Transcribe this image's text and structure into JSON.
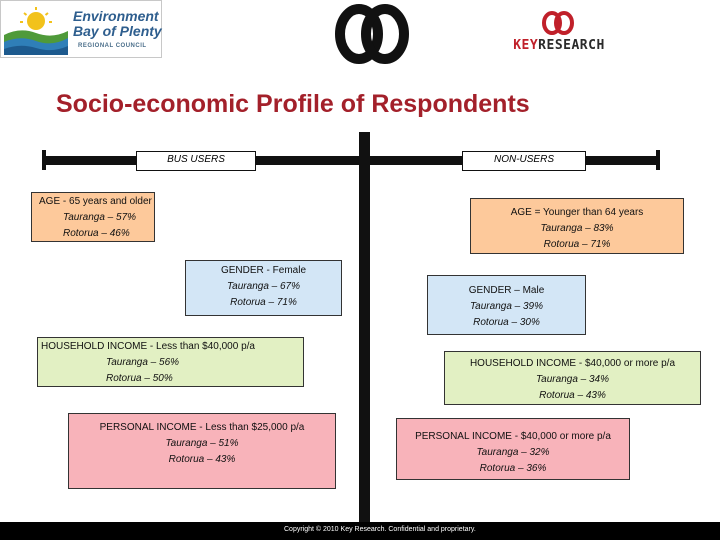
{
  "header": {
    "org_line1": "Environment",
    "org_line2": "Bay of Plenty",
    "org_sub": "REGIONAL COUNCIL",
    "kr_key": "KEY",
    "kr_research": "RESEARCH"
  },
  "title": "Socio-economic Profile of Respondents",
  "columns": {
    "left": "BUS USERS",
    "right": "NON-USERS"
  },
  "bus_users": {
    "age": {
      "heading": "AGE - 65 years and older",
      "line1": "Tauranga – 57%",
      "line2": "Rotorua – 46%"
    },
    "gender": {
      "heading": "GENDER - Female",
      "line1": "Tauranga – 67%",
      "line2": "Rotorua – 71%"
    },
    "household": {
      "heading": "HOUSEHOLD INCOME - Less than $40,000 p/a",
      "line1": "Tauranga – 56%",
      "line2": "Rotorua – 50%"
    },
    "personal": {
      "heading": "PERSONAL INCOME - Less than $25,000 p/a",
      "line1": "Tauranga – 51%",
      "line2": "Rotorua – 43%"
    }
  },
  "non_users": {
    "age": {
      "heading": "AGE = Younger than 64 years",
      "line1": "Tauranga – 83%",
      "line2": "Rotorua – 71%"
    },
    "gender": {
      "heading": "GENDER – Male",
      "line1": "Tauranga – 39%",
      "line2": "Rotorua – 30%"
    },
    "household": {
      "heading": "HOUSEHOLD INCOME - $40,000 or more p/a",
      "line1": "Tauranga – 34%",
      "line2": "Rotorua – 43%"
    },
    "personal": {
      "heading": "PERSONAL INCOME - $40,000 or more p/a",
      "line1": "Tauranga – 32%",
      "line2": "Rotorua – 36%"
    }
  },
  "footer": "Copyright © 2010 Key Research. Confidential and proprietary.",
  "colors": {
    "title": "#a3202a",
    "orange": "#fdc99b",
    "blue": "#d3e6f6",
    "green": "#e2f0c3",
    "pink": "#f8b3ba"
  }
}
